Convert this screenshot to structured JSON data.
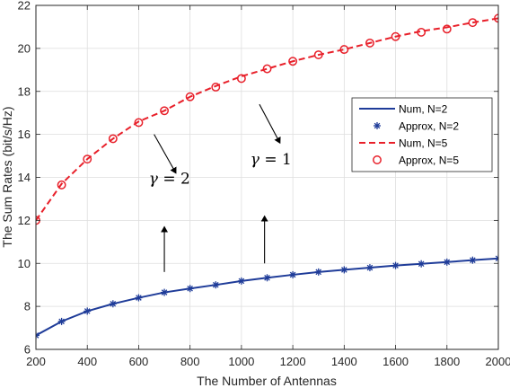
{
  "chart_data": {
    "type": "line",
    "xlabel": "The Number of Antennas",
    "ylabel": "The Sum Rates (bit/s/Hz)",
    "xlim": [
      200,
      2000
    ],
    "ylim": [
      6,
      22
    ],
    "xticks": [
      "200",
      "400",
      "600",
      "800",
      "1000",
      "1200",
      "1400",
      "1600",
      "1800",
      "2000"
    ],
    "yticks": [
      "6",
      "8",
      "10",
      "12",
      "14",
      "16",
      "18",
      "20",
      "22"
    ],
    "grid": true,
    "legend_position": "right",
    "x": [
      200,
      300,
      400,
      500,
      600,
      700,
      800,
      900,
      1000,
      1100,
      1200,
      1300,
      1400,
      1500,
      1600,
      1700,
      1800,
      1900,
      2000
    ],
    "series": [
      {
        "name": "Num, N=2",
        "style": "solid",
        "color": "#1f3c99",
        "marker": "none",
        "values": [
          6.65,
          7.3,
          7.78,
          8.12,
          8.4,
          8.65,
          8.83,
          9.0,
          9.18,
          9.33,
          9.47,
          9.6,
          9.7,
          9.8,
          9.9,
          9.98,
          10.06,
          10.15,
          10.23
        ]
      },
      {
        "name": "Approx, N=2",
        "style": "none",
        "color": "#1f3c99",
        "marker": "asterisk",
        "values": [
          6.65,
          7.3,
          7.78,
          8.12,
          8.4,
          8.65,
          8.83,
          9.0,
          9.18,
          9.33,
          9.47,
          9.6,
          9.7,
          9.8,
          9.9,
          9.98,
          10.06,
          10.15,
          10.23
        ]
      },
      {
        "name": "Num, N=5",
        "style": "dashed",
        "color": "#e8202a",
        "marker": "none",
        "values": [
          12.0,
          13.7,
          14.85,
          15.8,
          16.6,
          17.1,
          17.75,
          18.25,
          18.7,
          19.05,
          19.4,
          19.7,
          19.95,
          20.25,
          20.55,
          20.8,
          20.98,
          21.2,
          21.4
        ]
      },
      {
        "name": "Approx, N=5",
        "style": "none",
        "color": "#e8202a",
        "marker": "circle",
        "values": [
          12.0,
          13.65,
          14.85,
          15.8,
          16.55,
          17.1,
          17.75,
          18.2,
          18.6,
          19.05,
          19.4,
          19.7,
          19.95,
          20.25,
          20.55,
          20.75,
          20.9,
          21.2,
          21.4
        ]
      }
    ],
    "annotations": [
      {
        "symbol": "γ",
        "eq": "= 2",
        "at": [
          720,
          13.7
        ]
      },
      {
        "symbol": "γ",
        "eq": "= 1",
        "at": [
          1115,
          14.6
        ]
      }
    ],
    "arrows": [
      {
        "from": [
          660,
          16.0
        ],
        "to": [
          745,
          14.2
        ]
      },
      {
        "from": [
          1070,
          17.4
        ],
        "to": [
          1150,
          15.6
        ]
      },
      {
        "from": [
          700,
          9.6
        ],
        "to": [
          700,
          11.7
        ]
      },
      {
        "from": [
          1090,
          10.0
        ],
        "to": [
          1090,
          12.2
        ]
      }
    ]
  }
}
